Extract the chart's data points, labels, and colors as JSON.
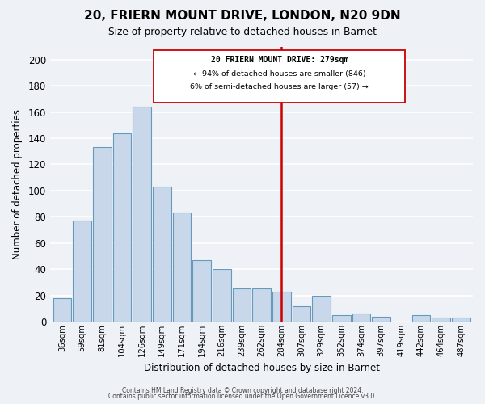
{
  "title": "20, FRIERN MOUNT DRIVE, LONDON, N20 9DN",
  "subtitle": "Size of property relative to detached houses in Barnet",
  "xlabel": "Distribution of detached houses by size in Barnet",
  "ylabel": "Number of detached properties",
  "bar_color": "#c8d8ea",
  "bar_edge_color": "#6699bb",
  "background_color": "#eef2f7",
  "grid_color": "#ffffff",
  "bins": [
    "36sqm",
    "59sqm",
    "81sqm",
    "104sqm",
    "126sqm",
    "149sqm",
    "171sqm",
    "194sqm",
    "216sqm",
    "239sqm",
    "262sqm",
    "284sqm",
    "307sqm",
    "329sqm",
    "352sqm",
    "374sqm",
    "397sqm",
    "419sqm",
    "442sqm",
    "464sqm",
    "487sqm"
  ],
  "values": [
    18,
    77,
    133,
    144,
    164,
    103,
    83,
    47,
    40,
    25,
    25,
    23,
    12,
    20,
    5,
    6,
    4,
    0,
    5,
    3,
    3
  ],
  "vline_color": "#cc0000",
  "annotation_title": "20 FRIERN MOUNT DRIVE: 279sqm",
  "annotation_line1": "← 94% of detached houses are smaller (846)",
  "annotation_line2": "6% of semi-detached houses are larger (57) →",
  "ylim": [
    0,
    210
  ],
  "yticks": [
    0,
    20,
    40,
    60,
    80,
    100,
    120,
    140,
    160,
    180,
    200
  ],
  "footer1": "Contains HM Land Registry data © Crown copyright and database right 2024.",
  "footer2": "Contains public sector information licensed under the Open Government Licence v3.0."
}
